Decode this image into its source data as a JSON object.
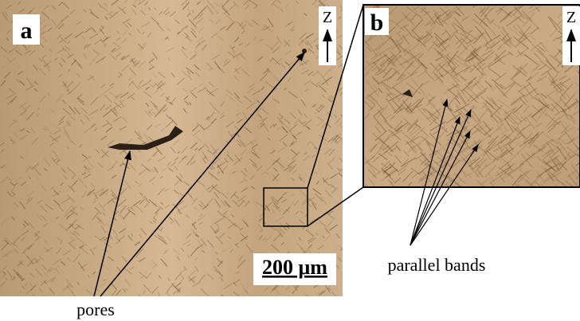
{
  "panels": [
    {
      "label": "a",
      "axis": "Z",
      "scale_bar": "200 μm"
    },
    {
      "label": "b",
      "axis": "Z"
    }
  ],
  "annotations": {
    "pores": "pores",
    "bands": "parallel bands"
  }
}
